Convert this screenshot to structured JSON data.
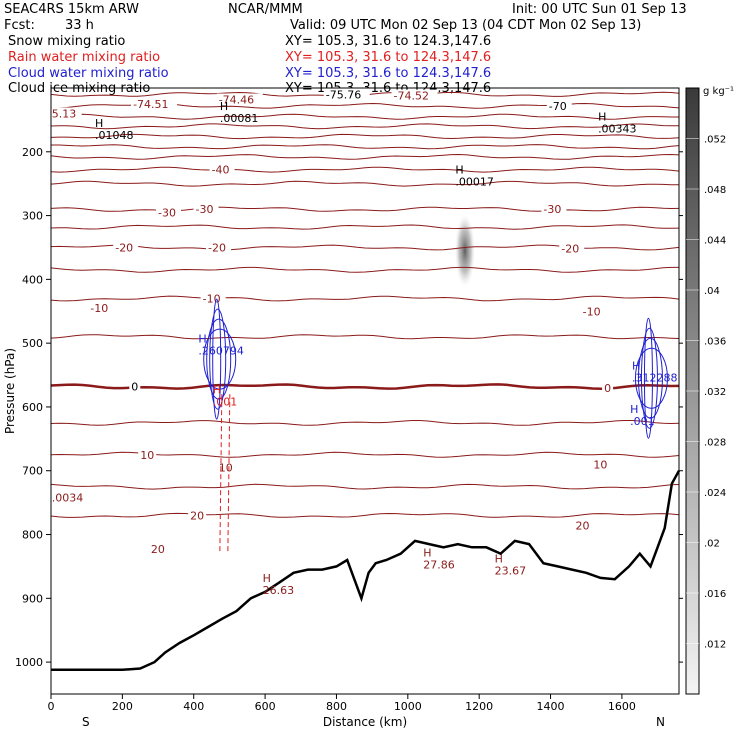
{
  "header": {
    "experiment": "SEAC4RS 15km ARW",
    "center": "NCAR/MMM",
    "init": "Init: 00 UTC Sun 01 Sep 13",
    "fcst_label": "Fcst:",
    "fcst_value": "33 h",
    "valid": "Valid: 09 UTC Mon 02 Sep 13 (04 CDT Mon 02 Sep 13)",
    "fields": [
      {
        "name": "Snow mixing ratio",
        "xy": "XY= 105.3, 31.6 to 124.3,147.6",
        "color": "#000000"
      },
      {
        "name": "Rain water mixing ratio",
        "xy": "XY= 105.3, 31.6 to 124.3,147.6",
        "color": "#e02020"
      },
      {
        "name": "Cloud water mixing ratio",
        "xy": "XY= 105.3, 31.6 to 124.3,147.6",
        "color": "#2020d0"
      },
      {
        "name": "Cloud ice mixing ratio",
        "xy": "XY= 105.3, 31.6 to 124.3,147.6",
        "color": "#000000"
      }
    ]
  },
  "colors": {
    "temperature": "#8b1a1a",
    "freezing": "#8b1a1a",
    "terrain": "#000000",
    "rain": "#e02020",
    "cloud": "#2020d0",
    "ice": "#000000"
  },
  "chart_data": {
    "type": "cross-section",
    "xlabel": "Distance (km)",
    "ylabel": "Pressure (hPa)",
    "xlim": [
      0,
      1760
    ],
    "ylim": [
      1050,
      100
    ],
    "x_ticks": [
      0,
      200,
      400,
      600,
      800,
      1000,
      1200,
      1400,
      1600
    ],
    "x_tick_labels": [
      "0",
      "200",
      "400",
      "600",
      "800",
      "1000",
      "1200",
      "1400",
      "1600"
    ],
    "y_ticks": [
      200,
      300,
      400,
      500,
      600,
      700,
      800,
      900,
      1000
    ],
    "y_tick_labels": [
      "200",
      "300",
      "400",
      "500",
      "600",
      "700",
      "800",
      "900",
      "1000"
    ],
    "end_labels": {
      "left": "S",
      "right": "N"
    },
    "colorbar": {
      "unit": "g kg⁻¹",
      "ticks": [
        ".012",
        ".016",
        ".02",
        ".024",
        ".028",
        ".032",
        ".036",
        ".04",
        ".044",
        ".048",
        ".052"
      ]
    },
    "isotherms": [
      {
        "value": -75,
        "pressure": 110,
        "label": "-75.76",
        "label_x": 770
      },
      {
        "value": -70,
        "pressure": 128,
        "label": "-70",
        "label_x": 1395
      },
      {
        "value": -65,
        "pressure": 145
      },
      {
        "value": -60,
        "pressure": 160
      },
      {
        "value": -55,
        "pressure": 176
      },
      {
        "value": -50,
        "pressure": 192
      },
      {
        "value": -45,
        "pressure": 208
      },
      {
        "value": -40,
        "pressure": 228,
        "label": "-40",
        "label_x": 450
      },
      {
        "value": -35,
        "pressure": 250
      },
      {
        "value": -30,
        "pressure": 290,
        "label": "-30",
        "label_x": 405
      },
      {
        "value": -25,
        "pressure": 318
      },
      {
        "value": -20,
        "pressure": 350,
        "label": "-20",
        "label_x": 440
      },
      {
        "value": -15,
        "pressure": 385
      },
      {
        "value": -10,
        "pressure": 430,
        "label": "-10",
        "label_x": 425
      },
      {
        "value": -5,
        "pressure": 490
      },
      {
        "value": 0,
        "pressure": 568,
        "label": "0",
        "label_x": 225
      },
      {
        "value": 5,
        "pressure": 625
      },
      {
        "value": 10,
        "pressure": 675,
        "label": "10",
        "label_x": 250
      },
      {
        "value": 15,
        "pressure": 725
      },
      {
        "value": 20,
        "pressure": 770,
        "label": "20",
        "label_x": 390
      }
    ],
    "extra_labels": [
      {
        "text": "-74.51",
        "x": 230,
        "p": 125
      },
      {
        "text": "-74.46",
        "x": 470,
        "p": 118
      },
      {
        "text": "-74.52",
        "x": 960,
        "p": 112
      },
      {
        "text": "-30",
        "x": 1380,
        "p": 290
      },
      {
        "text": "-30",
        "x": 300,
        "p": 295
      },
      {
        "text": "-20",
        "x": 1430,
        "p": 352
      },
      {
        "text": "-20",
        "x": 180,
        "p": 350
      },
      {
        "text": "-10",
        "x": 1490,
        "p": 450
      },
      {
        "text": "-10",
        "x": 110,
        "p": 445
      },
      {
        "text": "0",
        "x": 1550,
        "p": 570
      },
      {
        "text": "10",
        "x": 1520,
        "p": 690
      },
      {
        "text": "10",
        "x": 470,
        "p": 695
      },
      {
        "text": "20",
        "x": 1470,
        "p": 786
      },
      {
        "text": "20",
        "x": 280,
        "p": 823
      },
      {
        "text": ".0034",
        "x": 2,
        "p": 742
      },
      {
        "text": "5.13",
        "x": 2,
        "p": 140
      }
    ],
    "maxima": [
      {
        "text": ".01048",
        "x": 140,
        "p": 180,
        "color": "#000000"
      },
      {
        "text": ".00081",
        "x": 490,
        "p": 153,
        "color": "#000000"
      },
      {
        "text": ".00343",
        "x": 1550,
        "p": 170,
        "color": "#000000"
      },
      {
        "text": ".00017",
        "x": 1150,
        "p": 253,
        "color": "#000000"
      },
      {
        "text": ".260794",
        "x": 430,
        "p": 518,
        "color": "#2020d0"
      },
      {
        "text": ".001",
        "x": 470,
        "p": 598,
        "color": "#e02020"
      },
      {
        "text": ".312288",
        "x": 1645,
        "p": 560,
        "color": "#2020d0"
      },
      {
        "text": ".001",
        "x": 1640,
        "p": 628,
        "color": "#2020d0"
      },
      {
        "text": "27.86",
        "x": 1060,
        "p": 853,
        "color": "#8b1a1a"
      },
      {
        "text": "23.67",
        "x": 1260,
        "p": 863,
        "color": "#8b1a1a"
      },
      {
        "text": "26.63",
        "x": 610,
        "p": 893,
        "color": "#8b1a1a"
      }
    ],
    "terrain": {
      "x": [
        0,
        100,
        200,
        250,
        290,
        320,
        360,
        400,
        440,
        480,
        520,
        560,
        600,
        640,
        680,
        720,
        760,
        800,
        830,
        850,
        870,
        890,
        910,
        940,
        980,
        1020,
        1060,
        1100,
        1140,
        1180,
        1220,
        1260,
        1300,
        1340,
        1380,
        1420,
        1460,
        1500,
        1540,
        1580,
        1620,
        1650,
        1680,
        1700,
        1720,
        1740,
        1760
      ],
      "p": [
        1012,
        1012,
        1012,
        1010,
        1000,
        985,
        970,
        958,
        945,
        932,
        920,
        900,
        890,
        875,
        860,
        855,
        855,
        850,
        840,
        870,
        900,
        860,
        845,
        840,
        830,
        810,
        815,
        820,
        815,
        820,
        820,
        830,
        810,
        815,
        845,
        850,
        855,
        860,
        868,
        870,
        850,
        830,
        850,
        820,
        790,
        720,
        700
      ]
    },
    "snow_blob": {
      "x": 1160,
      "p": 355,
      "max": 0.052
    },
    "cloud_contours_x": [
      470,
      1680
    ],
    "rain_contour_x": 490
  }
}
